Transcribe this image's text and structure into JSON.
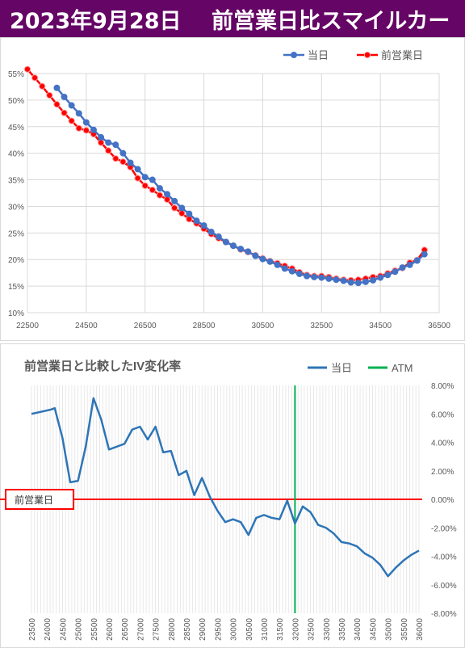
{
  "header": {
    "date": "2023年9月28日",
    "title": "前営業日比スマイルカーブ"
  },
  "colors": {
    "banner": "#650565",
    "today": "#4472C4",
    "prev": "#FF0000",
    "iv_line": "#2E75B6",
    "atm": "#00B050",
    "baseline": "#FF0000"
  },
  "chart_data": [
    {
      "type": "line",
      "title": "",
      "xlim": [
        22500,
        36500
      ],
      "ylim": [
        10,
        55
      ],
      "ytick_suffix": "%",
      "x_ticks": [
        "22500",
        "24500",
        "26500",
        "28500",
        "30500",
        "32500",
        "34500",
        "36500"
      ],
      "y_ticks": [
        "10%",
        "15%",
        "20%",
        "25%",
        "30%",
        "35%",
        "40%",
        "45%",
        "50%",
        "55%"
      ],
      "legend_position": "top",
      "series": [
        {
          "name": "当日",
          "x": [
            23500,
            23750,
            24000,
            24250,
            24500,
            24750,
            25000,
            25250,
            25500,
            25750,
            26000,
            26250,
            26500,
            26750,
            27000,
            27250,
            27500,
            27750,
            28000,
            28250,
            28500,
            28750,
            29000,
            29250,
            29500,
            29750,
            30000,
            30250,
            30500,
            30750,
            31000,
            31250,
            31500,
            31750,
            32000,
            32250,
            32500,
            32750,
            33000,
            33250,
            33500,
            33750,
            34000,
            34250,
            34500,
            34750,
            35000,
            35250,
            35500,
            35750,
            36000
          ],
          "values": [
            52.3,
            50.6,
            49.0,
            47.5,
            45.8,
            44.4,
            43.0,
            42.0,
            41.6,
            40.0,
            38.2,
            37.0,
            35.5,
            35.0,
            33.4,
            32.3,
            31.0,
            29.7,
            28.6,
            27.3,
            26.4,
            25.2,
            24.3,
            23.3,
            22.6,
            22.0,
            21.5,
            20.7,
            20.1,
            19.6,
            19.0,
            18.3,
            17.8,
            17.3,
            16.9,
            16.7,
            16.6,
            16.4,
            16.2,
            16.0,
            15.7,
            15.6,
            15.8,
            16.1,
            16.6,
            17.1,
            17.7,
            18.5,
            19.0,
            19.8,
            21.0
          ]
        },
        {
          "name": "前営業日",
          "x": [
            22500,
            22750,
            23000,
            23250,
            23500,
            23750,
            24000,
            24250,
            24500,
            24750,
            25000,
            25250,
            25500,
            25750,
            26000,
            26250,
            26500,
            26750,
            27000,
            27250,
            27500,
            27750,
            28000,
            28250,
            28500,
            28750,
            29000,
            29250,
            29500,
            29750,
            30000,
            30250,
            30500,
            30750,
            31000,
            31250,
            31500,
            31750,
            32000,
            32250,
            32500,
            32750,
            33000,
            33250,
            33500,
            33750,
            34000,
            34250,
            34500,
            34750,
            35000,
            35250,
            35500,
            35750,
            36000
          ],
          "values": [
            55.8,
            54.2,
            52.6,
            50.9,
            49.2,
            47.6,
            46.1,
            44.7,
            44.3,
            43.6,
            42.0,
            40.5,
            39.0,
            38.4,
            37.4,
            35.3,
            33.9,
            33.1,
            32.1,
            31.3,
            29.7,
            28.7,
            27.6,
            26.8,
            25.8,
            24.8,
            24.0,
            23.3,
            22.6,
            21.9,
            21.4,
            20.8,
            20.2,
            19.7,
            19.3,
            18.8,
            18.3,
            17.6,
            17.1,
            16.9,
            16.9,
            16.7,
            16.4,
            16.2,
            16.1,
            16.2,
            16.4,
            16.7,
            16.9,
            17.4,
            17.9,
            18.4,
            19.4,
            19.9,
            21.8
          ]
        }
      ]
    },
    {
      "type": "line",
      "title": "前営業日と比較したIV変化率",
      "xlim": [
        23500,
        36000
      ],
      "ylim": [
        -8,
        8
      ],
      "legend_position": "top-right",
      "x_ticks": [
        "23500",
        "24000",
        "24500",
        "25000",
        "25500",
        "26000",
        "26500",
        "27000",
        "27500",
        "28000",
        "28500",
        "29000",
        "29500",
        "30000",
        "30500",
        "31000",
        "31500",
        "32000",
        "32500",
        "33000",
        "33500",
        "34000",
        "34500",
        "35000",
        "35500",
        "36000"
      ],
      "y_ticks": [
        "8.00%",
        "6.00%",
        "4.00%",
        "2.00%",
        "0.00%",
        "-2.00%",
        "-4.00%",
        "-6.00%",
        "-8.00%"
      ],
      "series": [
        {
          "name": "当日",
          "x": [
            23500,
            24125,
            24250,
            24500,
            24750,
            25000,
            25250,
            25500,
            25750,
            26000,
            26250,
            26500,
            26750,
            27000,
            27250,
            27500,
            27750,
            28000,
            28250,
            28500,
            28750,
            29000,
            29250,
            29500,
            29750,
            30000,
            30250,
            30500,
            30750,
            31000,
            31250,
            31500,
            31750,
            32000,
            32250,
            32500,
            32750,
            33000,
            33250,
            33500,
            33750,
            34000,
            34250,
            34500,
            34750,
            35000,
            35250,
            35500,
            35750,
            36000
          ],
          "values": [
            6.0,
            6.3,
            6.4,
            4.3,
            1.2,
            1.3,
            3.7,
            7.1,
            5.6,
            3.5,
            3.7,
            3.9,
            4.9,
            5.1,
            4.2,
            5.1,
            3.3,
            3.4,
            1.7,
            2.0,
            0.3,
            1.5,
            0.2,
            -0.8,
            -1.6,
            -1.4,
            -1.6,
            -2.5,
            -1.3,
            -1.1,
            -1.3,
            -1.4,
            -0.1,
            -1.7,
            -0.5,
            -0.9,
            -1.8,
            -2.0,
            -2.4,
            -3.0,
            -3.1,
            -3.3,
            -3.8,
            -4.1,
            -4.6,
            -5.4,
            -4.8,
            -4.3,
            -3.9,
            -3.6
          ]
        }
      ],
      "atm": {
        "name": "ATM",
        "x": 32000
      },
      "baseline_label": "前営業日"
    }
  ]
}
